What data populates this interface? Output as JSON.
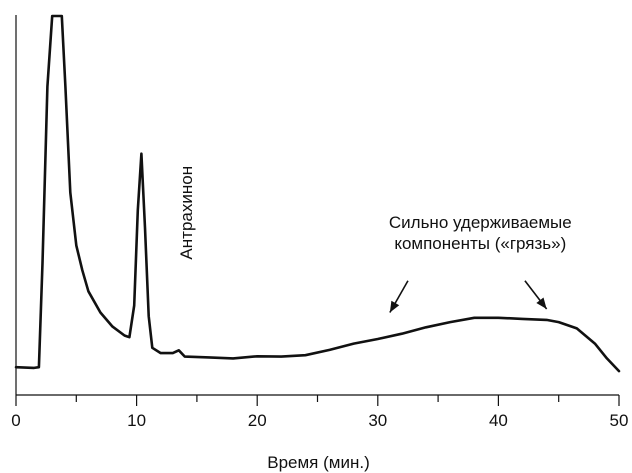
{
  "chart_data": {
    "type": "line",
    "title": "",
    "xlabel": "Время (мин.)",
    "ylabel": "",
    "xlim": [
      0,
      50
    ],
    "ylim": [
      0,
      100
    ],
    "x_ticks": [
      0,
      10,
      20,
      30,
      40,
      50
    ],
    "y_ticks": [],
    "grid": false,
    "series": [
      {
        "values": [
          {
            "x": 0,
            "y": 0.5
          },
          {
            "x": 1.5,
            "y": 0.3
          },
          {
            "x": 1.9,
            "y": 0.5
          },
          {
            "x": 2.2,
            "y": 30
          },
          {
            "x": 2.6,
            "y": 80
          },
          {
            "x": 3.0,
            "y": 100
          },
          {
            "x": 3.8,
            "y": 100
          },
          {
            "x": 4.1,
            "y": 80
          },
          {
            "x": 4.5,
            "y": 50
          },
          {
            "x": 5.0,
            "y": 35
          },
          {
            "x": 5.5,
            "y": 28
          },
          {
            "x": 6.0,
            "y": 22
          },
          {
            "x": 7.0,
            "y": 16
          },
          {
            "x": 8.0,
            "y": 12
          },
          {
            "x": 9.0,
            "y": 9.5
          },
          {
            "x": 9.4,
            "y": 9
          },
          {
            "x": 9.8,
            "y": 18
          },
          {
            "x": 10.1,
            "y": 45
          },
          {
            "x": 10.4,
            "y": 61
          },
          {
            "x": 10.7,
            "y": 40
          },
          {
            "x": 11.0,
            "y": 15
          },
          {
            "x": 11.3,
            "y": 6
          },
          {
            "x": 12.0,
            "y": 4.5
          },
          {
            "x": 13.0,
            "y": 4.5
          },
          {
            "x": 13.5,
            "y": 5.3
          },
          {
            "x": 14.0,
            "y": 3.5
          },
          {
            "x": 16.0,
            "y": 3.3
          },
          {
            "x": 18.0,
            "y": 3.0
          },
          {
            "x": 20.0,
            "y": 3.6
          },
          {
            "x": 22.0,
            "y": 3.5
          },
          {
            "x": 24.0,
            "y": 3.9
          },
          {
            "x": 26.0,
            "y": 5.4
          },
          {
            "x": 28.0,
            "y": 7.2
          },
          {
            "x": 30.0,
            "y": 8.5
          },
          {
            "x": 32.0,
            "y": 10.0
          },
          {
            "x": 34.0,
            "y": 11.8
          },
          {
            "x": 36.0,
            "y": 13.3
          },
          {
            "x": 38.0,
            "y": 14.5
          },
          {
            "x": 40.0,
            "y": 14.5
          },
          {
            "x": 42.0,
            "y": 14.2
          },
          {
            "x": 44.0,
            "y": 13.9
          },
          {
            "x": 45.0,
            "y": 13.3
          },
          {
            "x": 46.5,
            "y": 11.5
          },
          {
            "x": 48.0,
            "y": 7.2
          },
          {
            "x": 49.0,
            "y": 3.0
          },
          {
            "x": 50.0,
            "y": -0.6
          }
        ]
      }
    ],
    "annotations": [
      {
        "id": "anthraquinone",
        "text": "Антрахинон",
        "x": 14.6,
        "y": 31,
        "orientation": "vertical"
      },
      {
        "id": "dirt-line1",
        "text": "Сильно удерживаемые",
        "x": 38.5,
        "y": 40,
        "orientation": "horizontal"
      },
      {
        "id": "dirt-line2",
        "text": "компоненты («грязь»)",
        "x": 38.5,
        "y": 34,
        "orientation": "horizontal"
      }
    ],
    "arrows": [
      {
        "id": "arrow-left",
        "from": {
          "x": 32.5,
          "y": 25
        },
        "to": {
          "x": 31.0,
          "y": 16
        }
      },
      {
        "id": "arrow-right",
        "from": {
          "x": 42.2,
          "y": 25
        },
        "to": {
          "x": 44.0,
          "y": 17
        }
      }
    ]
  }
}
